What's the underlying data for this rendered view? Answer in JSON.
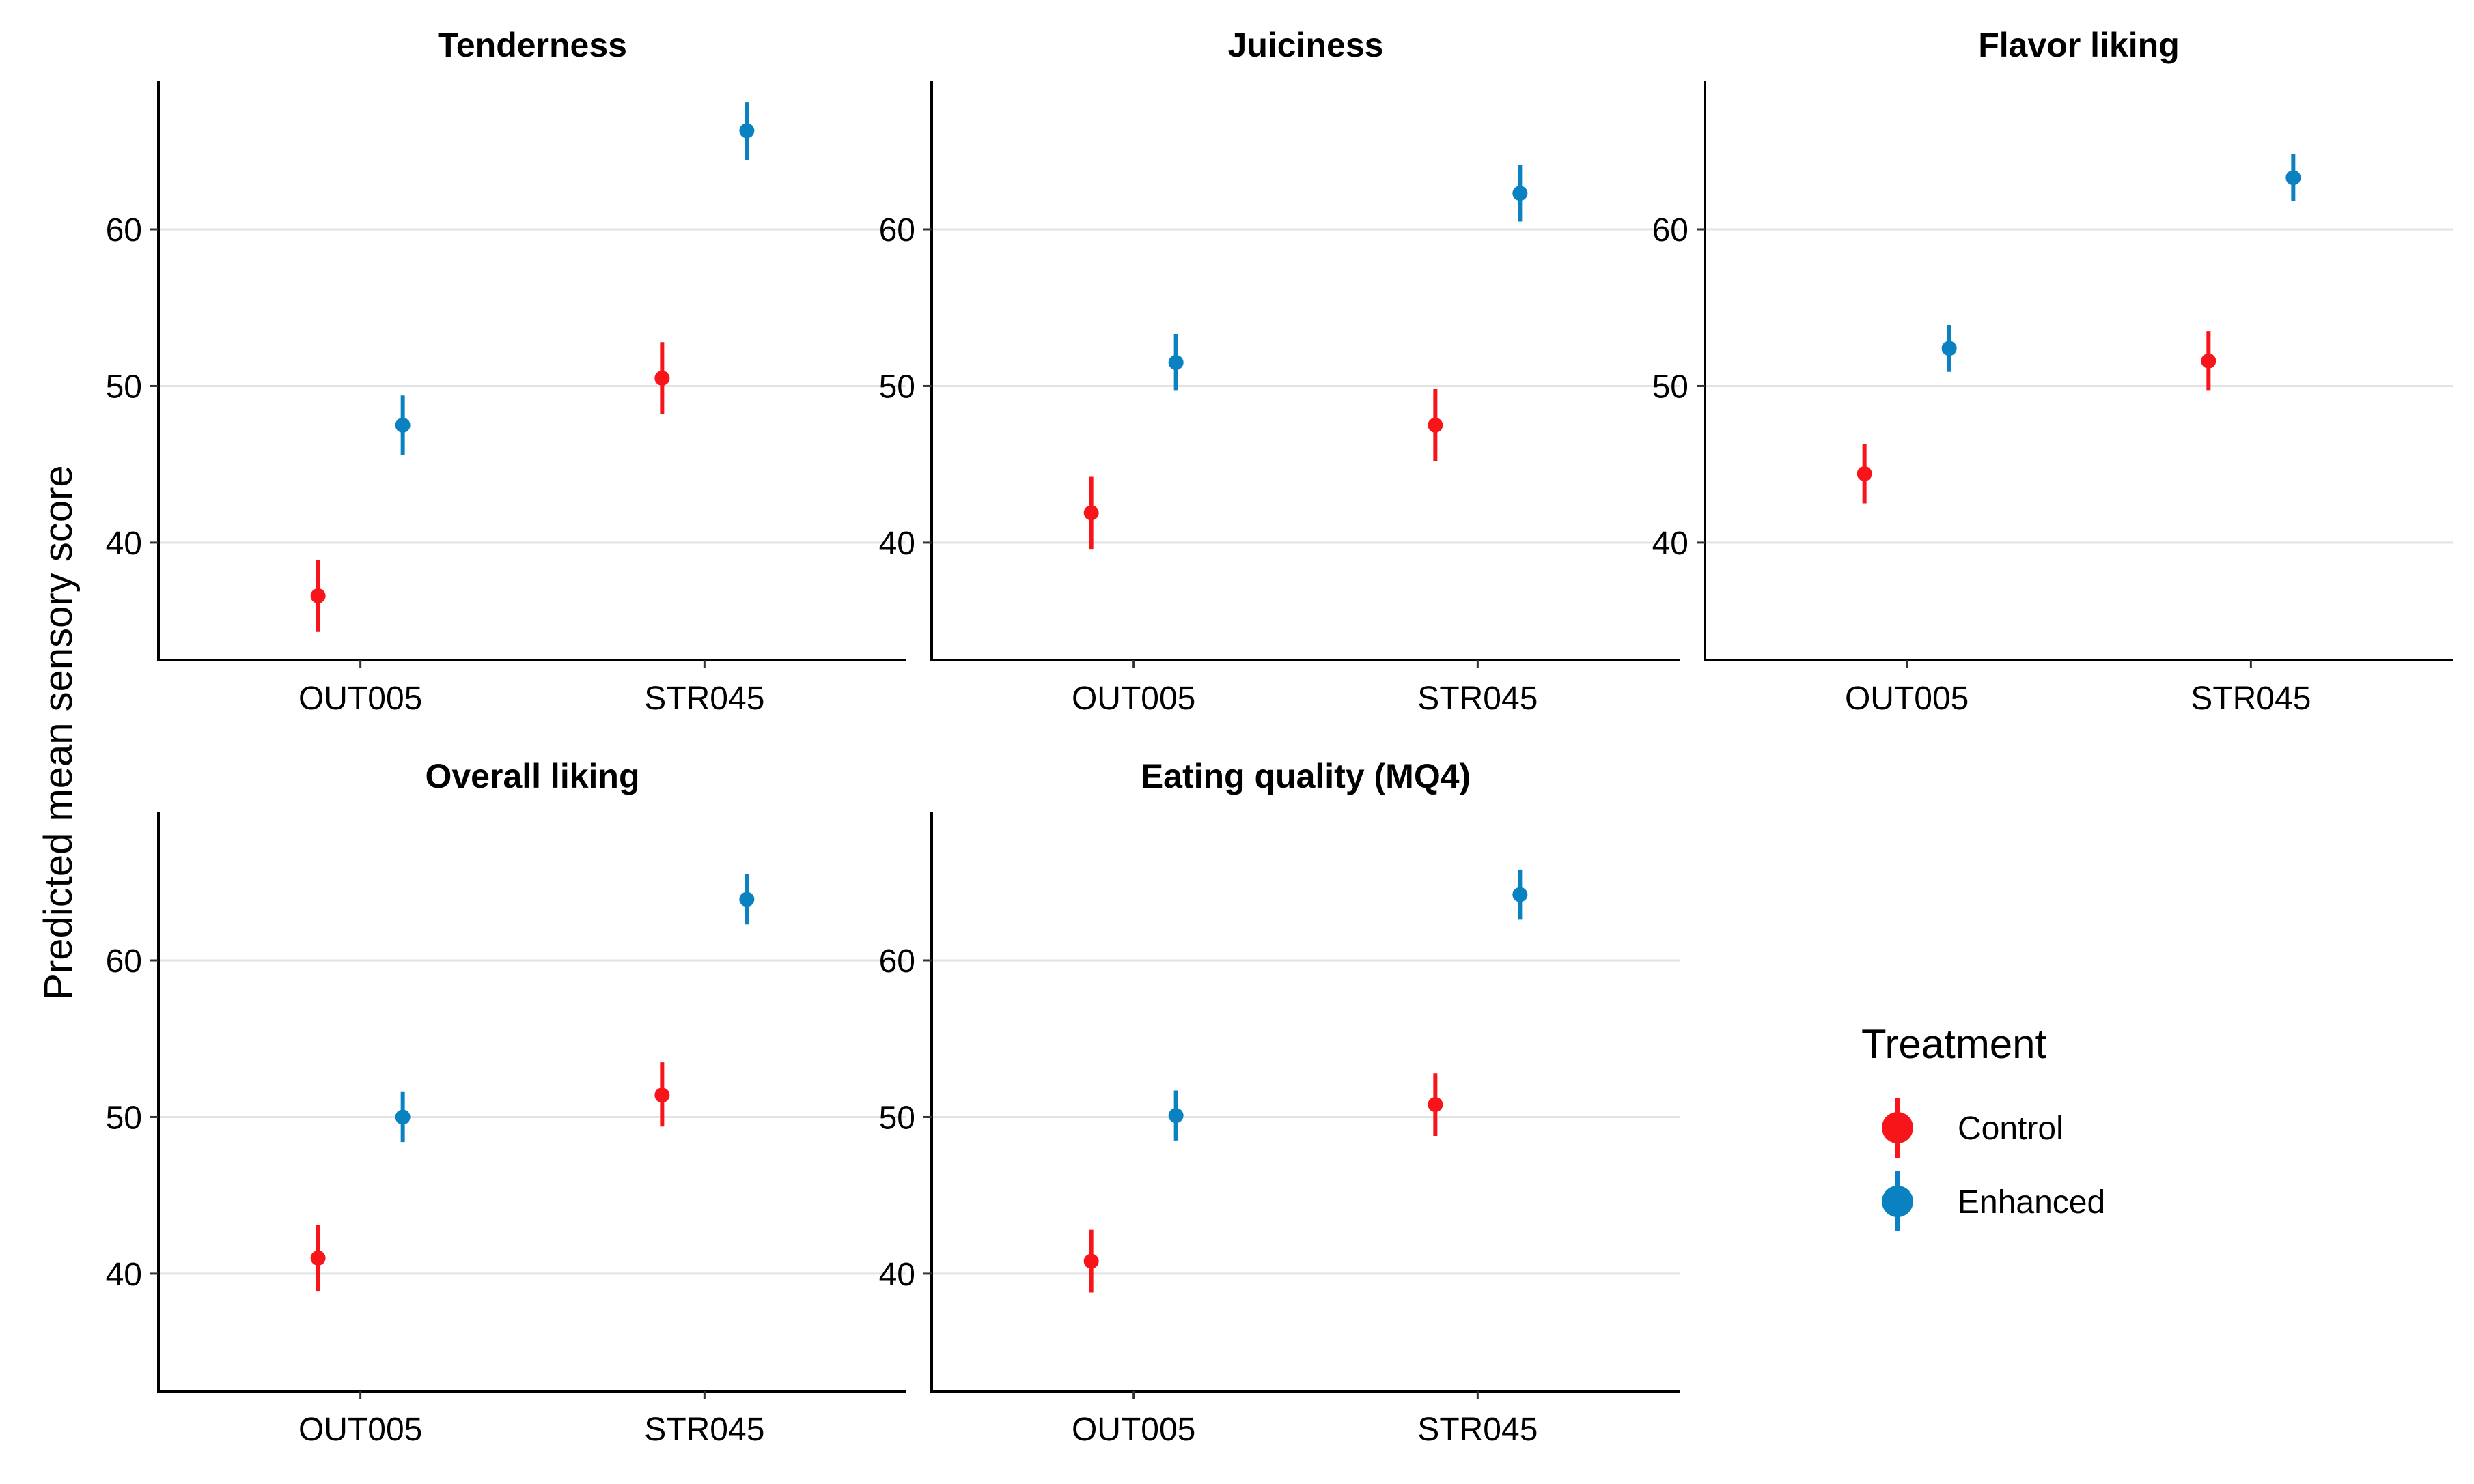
{
  "chart_data": {
    "type": "scatter",
    "chart_kind": "point-range (estimate with error bars), faceted",
    "ylabel": "Predicted mean sensory score",
    "xlabel": "",
    "categories": [
      "OUT005",
      "STR045"
    ],
    "ylim": [
      32.5,
      69.5
    ],
    "yticks": [
      40,
      50,
      60
    ],
    "grid": "horizontal major gridlines on",
    "legend": {
      "title": "Treatment",
      "placement": "right",
      "entries": [
        {
          "name": "Control",
          "color": "#F8151A"
        },
        {
          "name": "Enhanced",
          "color": "#0A82C2"
        }
      ]
    },
    "panels": [
      {
        "title": "Tenderness",
        "series": [
          {
            "name": "Control",
            "points": [
              {
                "x": "OUT005",
                "y": 36.6,
                "lower": 34.3,
                "upper": 38.9
              },
              {
                "x": "STR045",
                "y": 50.5,
                "lower": 48.2,
                "upper": 52.8
              }
            ]
          },
          {
            "name": "Enhanced",
            "points": [
              {
                "x": "OUT005",
                "y": 47.5,
                "lower": 45.6,
                "upper": 49.4
              },
              {
                "x": "STR045",
                "y": 66.3,
                "lower": 64.4,
                "upper": 68.1
              }
            ]
          }
        ]
      },
      {
        "title": "Juiciness",
        "series": [
          {
            "name": "Control",
            "points": [
              {
                "x": "OUT005",
                "y": 41.9,
                "lower": 39.6,
                "upper": 44.2
              },
              {
                "x": "STR045",
                "y": 47.5,
                "lower": 45.2,
                "upper": 49.8
              }
            ]
          },
          {
            "name": "Enhanced",
            "points": [
              {
                "x": "OUT005",
                "y": 51.5,
                "lower": 49.7,
                "upper": 53.3
              },
              {
                "x": "STR045",
                "y": 62.3,
                "lower": 60.5,
                "upper": 64.1
              }
            ]
          }
        ]
      },
      {
        "title": "Flavor liking",
        "series": [
          {
            "name": "Control",
            "points": [
              {
                "x": "OUT005",
                "y": 44.4,
                "lower": 42.5,
                "upper": 46.3
              },
              {
                "x": "STR045",
                "y": 51.6,
                "lower": 49.7,
                "upper": 53.5
              }
            ]
          },
          {
            "name": "Enhanced",
            "points": [
              {
                "x": "OUT005",
                "y": 52.4,
                "lower": 50.9,
                "upper": 53.9
              },
              {
                "x": "STR045",
                "y": 63.3,
                "lower": 61.8,
                "upper": 64.8
              }
            ]
          }
        ]
      },
      {
        "title": "Overall liking",
        "series": [
          {
            "name": "Control",
            "points": [
              {
                "x": "OUT005",
                "y": 41.0,
                "lower": 38.9,
                "upper": 43.1
              },
              {
                "x": "STR045",
                "y": 51.4,
                "lower": 49.4,
                "upper": 53.5
              }
            ]
          },
          {
            "name": "Enhanced",
            "points": [
              {
                "x": "OUT005",
                "y": 50.0,
                "lower": 48.4,
                "upper": 51.6
              },
              {
                "x": "STR045",
                "y": 63.9,
                "lower": 62.3,
                "upper": 65.5
              }
            ]
          }
        ]
      },
      {
        "title": "Eating quality (MQ4)",
        "series": [
          {
            "name": "Control",
            "points": [
              {
                "x": "OUT005",
                "y": 40.8,
                "lower": 38.8,
                "upper": 42.8
              },
              {
                "x": "STR045",
                "y": 50.8,
                "lower": 48.8,
                "upper": 52.8
              }
            ]
          },
          {
            "name": "Enhanced",
            "points": [
              {
                "x": "OUT005",
                "y": 50.1,
                "lower": 48.5,
                "upper": 51.7
              },
              {
                "x": "STR045",
                "y": 64.2,
                "lower": 62.6,
                "upper": 65.8
              }
            ]
          }
        ]
      }
    ]
  }
}
